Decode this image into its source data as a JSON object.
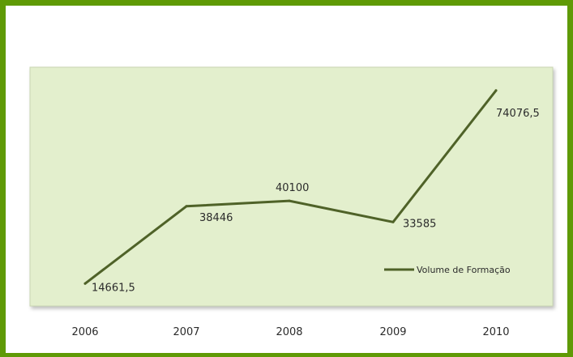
{
  "chart_data": {
    "type": "line",
    "title": "",
    "xlabel": "",
    "ylabel": "",
    "categories": [
      "2006",
      "2007",
      "2008",
      "2009",
      "2010"
    ],
    "series": [
      {
        "name": "Volume de Formação",
        "values": [
          14661.5,
          38446,
          40100,
          33585,
          74076.5
        ],
        "value_labels": [
          "14661,5",
          "38446",
          "40100",
          "33585",
          "74076,5"
        ],
        "color": "#4f6228"
      }
    ],
    "ylim": [
      8000,
      80000
    ],
    "grid": false,
    "legend_position": "bottom-right",
    "colors": {
      "frame": "#5f9a06",
      "plot_background": "#e3efcd",
      "plot_border": "#c9d6b2",
      "line": "#4f6228"
    }
  }
}
